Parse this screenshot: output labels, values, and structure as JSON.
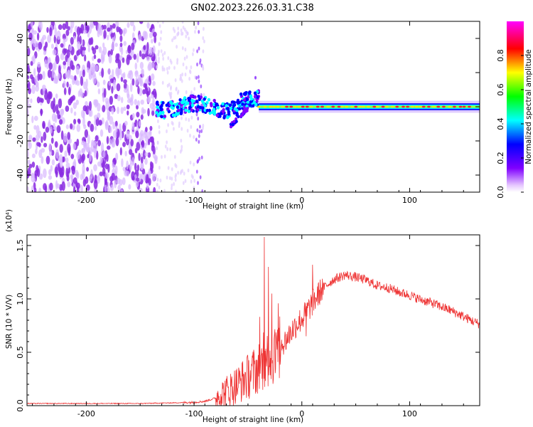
{
  "title": "GN02.2023.226.03.31.C38",
  "colors": {
    "snr_line": "#ee3333",
    "frame": "#000000",
    "background": "#ffffff"
  },
  "chart_data": [
    {
      "type": "heatmap",
      "title": "GN02.2023.226.03.31.C38",
      "xlabel": "Height of straight line (km)",
      "ylabel": "Frequency (Hz)",
      "xlim": [
        -255,
        165
      ],
      "ylim": [
        -50,
        50
      ],
      "x_ticks": [
        -200,
        -100,
        0,
        100
      ],
      "y_ticks": [
        -40,
        -20,
        0,
        20,
        40
      ],
      "colorbar": {
        "label": "Normalized spectral amplitude",
        "range": [
          0.0,
          1.0
        ],
        "ticks": [
          "0.0",
          "0.2",
          "0.4",
          "0.6",
          "0.8"
        ],
        "colormap": [
          "#ffffff",
          "#8000ff",
          "#0000ff",
          "#00ffff",
          "#00ff00",
          "#ffff00",
          "#ff0000",
          "#ff00ff"
        ]
      },
      "features": [
        {
          "region": "scattered noise",
          "x_range": [
            -255,
            -135
          ],
          "freq_range": [
            -50,
            50
          ],
          "amplitude": 0.15
        },
        {
          "region": "sparse noise",
          "x_range": [
            -135,
            -90
          ],
          "freq_range": [
            -50,
            50
          ],
          "amplitude": 0.05
        },
        {
          "region": "signal band",
          "x_range": [
            -135,
            -40
          ],
          "freq_center": 0,
          "amplitude": 0.3
        },
        {
          "region": "branch",
          "x_range": [
            -65,
            -50
          ],
          "freq_range": [
            -12,
            -2
          ],
          "amplitude": 0.2
        },
        {
          "region": "stable tone",
          "x_range": [
            -40,
            165
          ],
          "freq_center": 0,
          "amplitude": 0.9
        }
      ]
    },
    {
      "type": "line",
      "xlabel": "Height of straight line (km)",
      "ylabel": "SNR (10 * V/V)",
      "y_multiplier": "(x10⁴)",
      "xlim": [
        -255,
        165
      ],
      "ylim": [
        0,
        1.6
      ],
      "x_ticks": [
        -200,
        -100,
        0,
        100
      ],
      "y_ticks": [
        "0.0",
        "0.5",
        "1.0",
        "1.5"
      ],
      "series": [
        {
          "x": [
            -255,
            -200,
            -150,
            -100,
            -90,
            -80,
            -70,
            -60,
            -50,
            -40,
            -35,
            -30,
            -25,
            -20,
            -15,
            -10,
            -5,
            0,
            10,
            20,
            30,
            40,
            50,
            60,
            70,
            80,
            90,
            100,
            110,
            120,
            130,
            140,
            150,
            160,
            165
          ],
          "y": [
            0.02,
            0.02,
            0.02,
            0.03,
            0.04,
            0.07,
            0.12,
            0.18,
            0.25,
            0.33,
            0.38,
            0.42,
            0.45,
            0.5,
            0.6,
            0.68,
            0.75,
            0.8,
            0.95,
            1.1,
            1.18,
            1.22,
            1.2,
            1.17,
            1.12,
            1.1,
            1.06,
            1.03,
            0.99,
            0.96,
            0.92,
            0.88,
            0.83,
            0.78,
            0.76
          ],
          "spikes": [
            {
              "x": -35,
              "y": 1.58
            },
            {
              "x": -31,
              "y": 1.3
            },
            {
              "x": -28,
              "y": 1.05
            },
            {
              "x": 10,
              "y": 1.32
            },
            {
              "x": 4,
              "y": 0.65
            }
          ]
        }
      ]
    }
  ]
}
